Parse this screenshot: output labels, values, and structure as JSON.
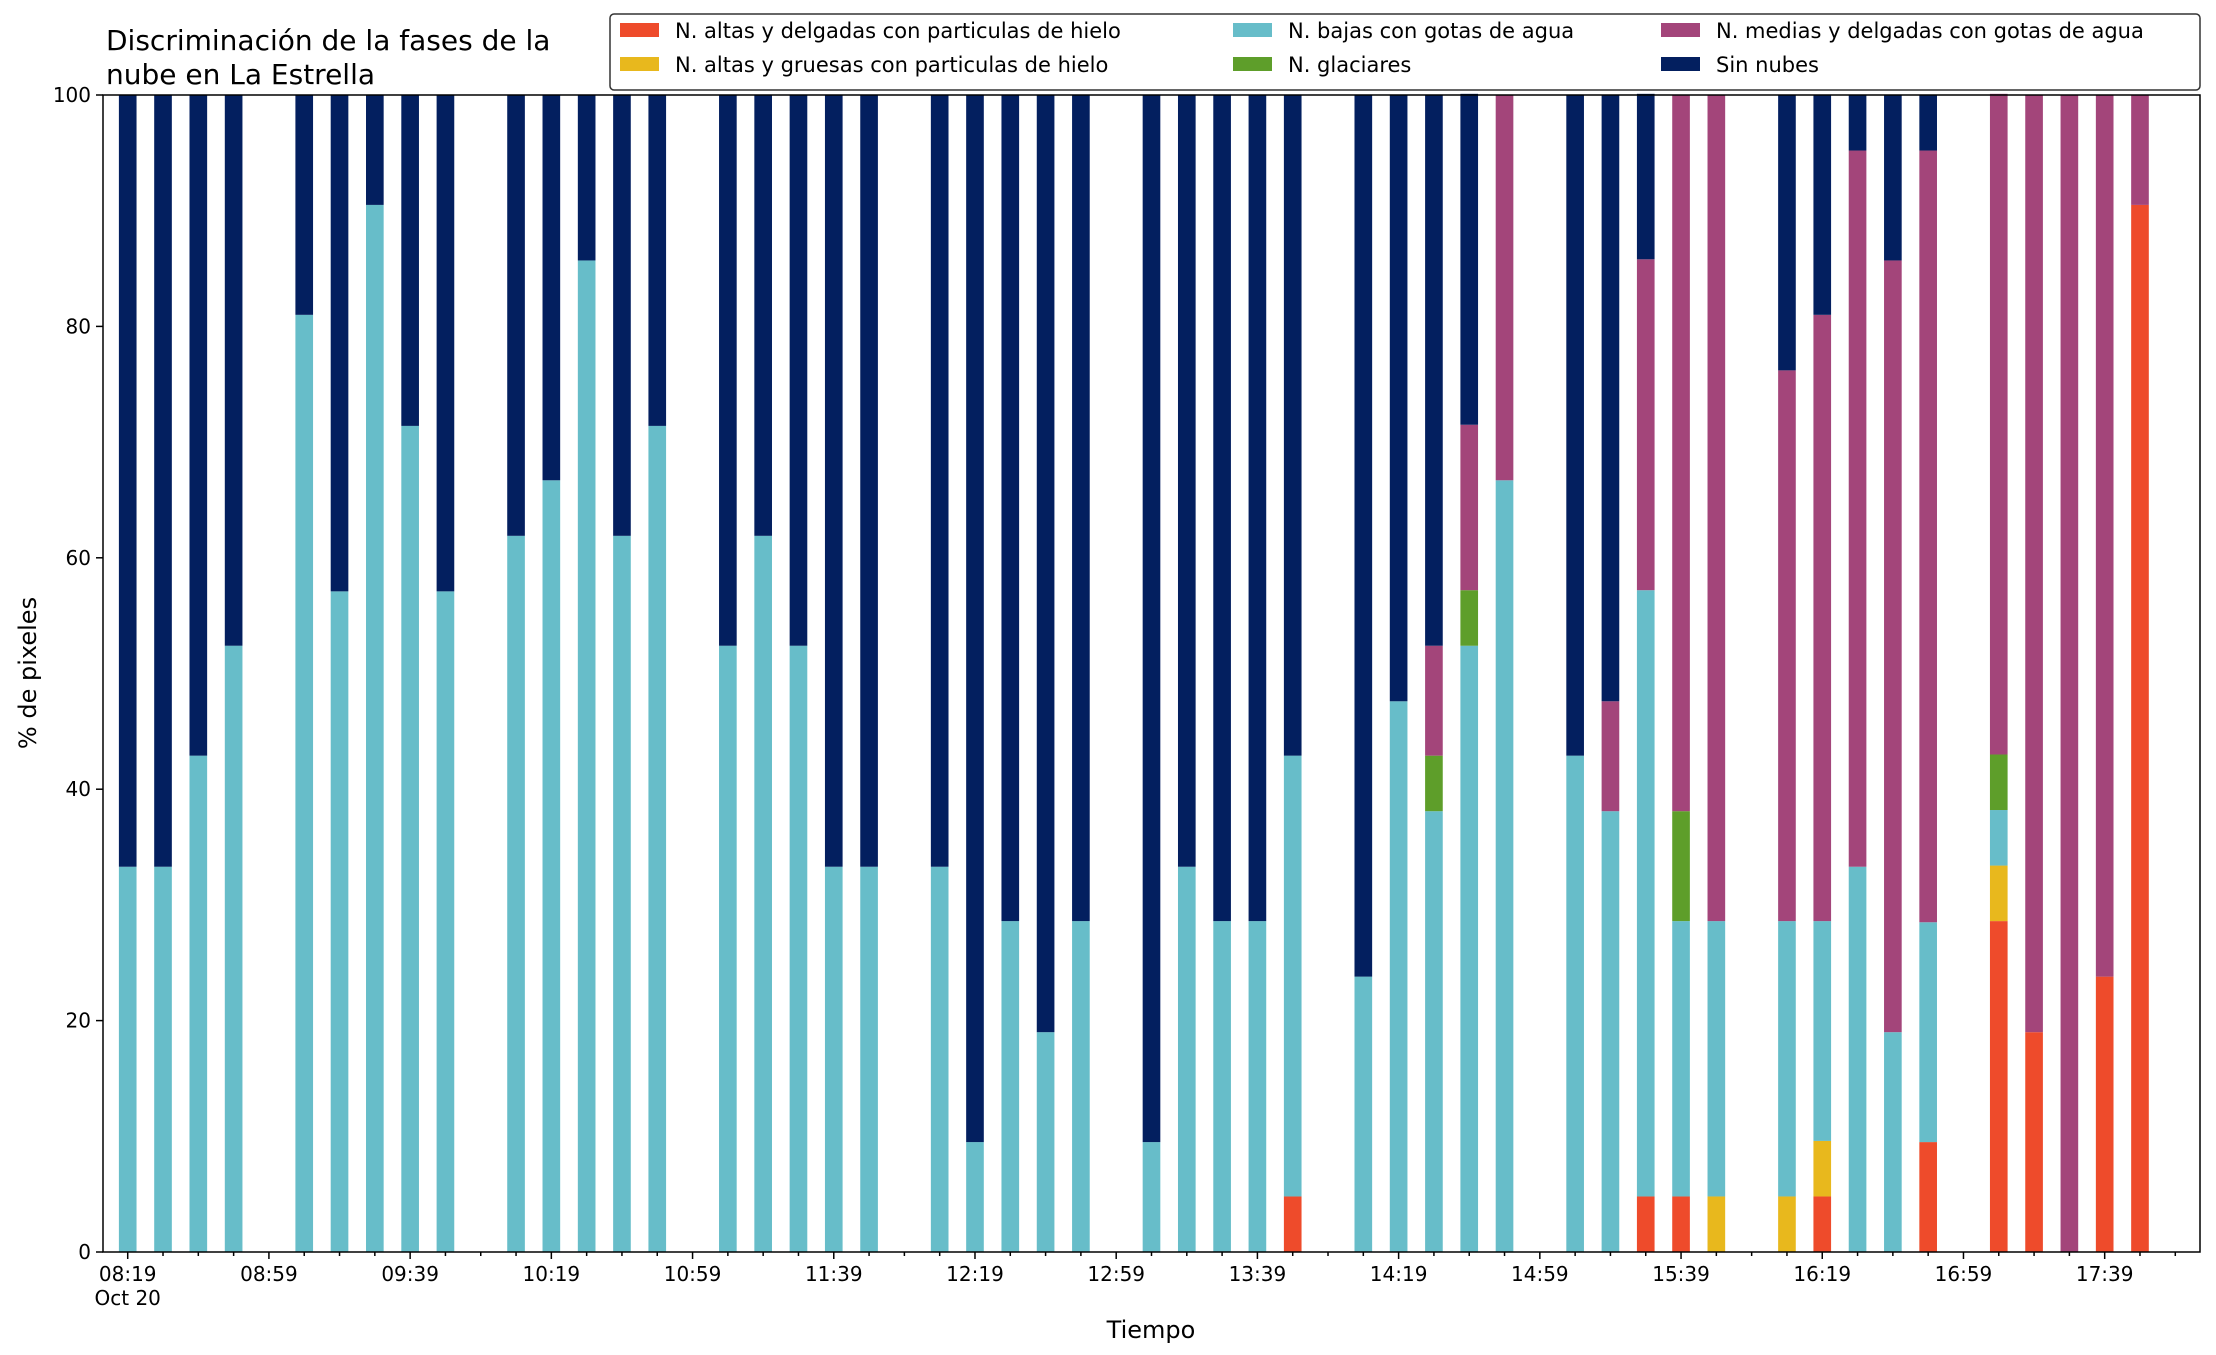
{
  "chart_data": {
    "type": "bar",
    "stacked": true,
    "title": [
      "Discriminación de la fases de la",
      "nube en La Estrella"
    ],
    "xlabel": "Tiempo",
    "ylabel": "% de pixeles",
    "ylim": [
      0,
      100
    ],
    "yticks": [
      0,
      20,
      40,
      60,
      80,
      100
    ],
    "xlim": [
      -0.7,
      58.7
    ],
    "xticks": [
      {
        "i": 0,
        "label": "08:19",
        "sub": "Oct 20"
      },
      {
        "i": 4,
        "label": "08:59"
      },
      {
        "i": 8,
        "label": "09:39"
      },
      {
        "i": 12,
        "label": "10:19"
      },
      {
        "i": 16,
        "label": "10:59"
      },
      {
        "i": 20,
        "label": "11:39"
      },
      {
        "i": 24,
        "label": "12:19"
      },
      {
        "i": 28,
        "label": "12:59"
      },
      {
        "i": 32,
        "label": "13:39"
      },
      {
        "i": 36,
        "label": "14:19"
      },
      {
        "i": 40,
        "label": "14:59"
      },
      {
        "i": 44,
        "label": "15:39"
      },
      {
        "i": 48,
        "label": "16:19"
      },
      {
        "i": 52,
        "label": "16:59"
      },
      {
        "i": 56,
        "label": "17:39"
      }
    ],
    "bar_width_fraction": 0.5,
    "grid": false,
    "legend_placement": "top",
    "series": [
      {
        "key": "altas_delgadas",
        "name": "N. altas y delgadas con particulas de hielo",
        "color": "#ee4b2b"
      },
      {
        "key": "altas_gruesas",
        "name": "N. altas y gruesas con particulas de hielo",
        "color": "#e8b81d"
      },
      {
        "key": "bajas",
        "name": "N. bajas con gotas de agua",
        "color": "#67bdc9"
      },
      {
        "key": "glaciares",
        "name": "N. glaciares",
        "color": "#5e9e2a"
      },
      {
        "key": "medias",
        "name": "N. medias y delgadas con gotas de agua",
        "color": "#a3457a"
      },
      {
        "key": "sin_nubes",
        "name": "Sin nubes",
        "color": "#031f5f"
      }
    ],
    "legend_order": [
      "altas_delgadas",
      "bajas",
      "medias",
      "altas_gruesas",
      "glaciares",
      "sin_nubes"
    ],
    "bars": [
      {
        "i": 0,
        "bajas": 33.3,
        "sin_nubes": 66.7
      },
      {
        "i": 1,
        "bajas": 33.3,
        "sin_nubes": 66.7
      },
      {
        "i": 2,
        "bajas": 42.9,
        "sin_nubes": 57.1
      },
      {
        "i": 3,
        "bajas": 52.4,
        "sin_nubes": 47.6
      },
      {
        "i": 5,
        "bajas": 81.0,
        "sin_nubes": 19.0
      },
      {
        "i": 6,
        "bajas": 57.1,
        "sin_nubes": 42.9
      },
      {
        "i": 7,
        "bajas": 90.5,
        "sin_nubes": 9.5
      },
      {
        "i": 8,
        "bajas": 71.4,
        "sin_nubes": 28.6
      },
      {
        "i": 9,
        "bajas": 57.1,
        "sin_nubes": 42.9
      },
      {
        "i": 11,
        "bajas": 61.9,
        "sin_nubes": 38.1
      },
      {
        "i": 12,
        "bajas": 66.7,
        "sin_nubes": 33.3
      },
      {
        "i": 13,
        "bajas": 85.7,
        "sin_nubes": 14.3
      },
      {
        "i": 14,
        "bajas": 61.9,
        "sin_nubes": 38.1
      },
      {
        "i": 15,
        "bajas": 71.4,
        "sin_nubes": 28.6
      },
      {
        "i": 17,
        "bajas": 52.4,
        "sin_nubes": 47.6
      },
      {
        "i": 18,
        "bajas": 61.9,
        "sin_nubes": 38.1
      },
      {
        "i": 19,
        "bajas": 52.4,
        "sin_nubes": 47.6
      },
      {
        "i": 20,
        "bajas": 33.3,
        "sin_nubes": 66.7
      },
      {
        "i": 21,
        "bajas": 33.3,
        "sin_nubes": 66.7
      },
      {
        "i": 23,
        "bajas": 33.3,
        "sin_nubes": 66.7
      },
      {
        "i": 24,
        "bajas": 9.5,
        "sin_nubes": 90.5
      },
      {
        "i": 25,
        "bajas": 28.6,
        "sin_nubes": 71.4
      },
      {
        "i": 26,
        "bajas": 19.0,
        "sin_nubes": 81.0
      },
      {
        "i": 27,
        "bajas": 28.6,
        "sin_nubes": 71.4
      },
      {
        "i": 29,
        "bajas": 9.5,
        "sin_nubes": 90.5
      },
      {
        "i": 30,
        "bajas": 33.3,
        "sin_nubes": 66.7
      },
      {
        "i": 31,
        "bajas": 28.6,
        "sin_nubes": 71.4
      },
      {
        "i": 32,
        "bajas": 28.6,
        "sin_nubes": 71.4
      },
      {
        "i": 33,
        "altas_delgadas": 4.8,
        "bajas": 38.1,
        "sin_nubes": 57.1
      },
      {
        "i": 35,
        "bajas": 23.8,
        "sin_nubes": 76.2
      },
      {
        "i": 36,
        "bajas": 47.6,
        "sin_nubes": 52.4
      },
      {
        "i": 37,
        "bajas": 38.1,
        "glaciares": 4.8,
        "medias": 9.5,
        "sin_nubes": 47.6
      },
      {
        "i": 38,
        "bajas": 52.4,
        "glaciares": 4.8,
        "medias": 14.3,
        "sin_nubes": 28.6
      },
      {
        "i": 39,
        "bajas": 66.7,
        "medias": 33.3
      },
      {
        "i": 41,
        "bajas": 42.9,
        "sin_nubes": 57.1
      },
      {
        "i": 42,
        "bajas": 38.1,
        "medias": 9.5,
        "sin_nubes": 52.4
      },
      {
        "i": 43,
        "altas_delgadas": 4.8,
        "bajas": 52.4,
        "medias": 28.6,
        "sin_nubes": 14.3
      },
      {
        "i": 44,
        "altas_delgadas": 4.8,
        "bajas": 23.8,
        "glaciares": 9.5,
        "medias": 61.9
      },
      {
        "i": 45,
        "altas_gruesas": 4.8,
        "bajas": 23.8,
        "medias": 71.4
      },
      {
        "i": 47,
        "altas_gruesas": 4.8,
        "bajas": 23.8,
        "medias": 47.6,
        "sin_nubes": 23.8
      },
      {
        "i": 48,
        "altas_delgadas": 4.8,
        "altas_gruesas": 4.8,
        "bajas": 19.0,
        "medias": 52.4,
        "sin_nubes": 19.0
      },
      {
        "i": 49,
        "bajas": 33.3,
        "medias": 61.9,
        "sin_nubes": 4.8
      },
      {
        "i": 50,
        "bajas": 19.0,
        "medias": 66.7,
        "sin_nubes": 14.3
      },
      {
        "i": 51,
        "altas_delgadas": 9.5,
        "bajas": 19.0,
        "medias": 66.7,
        "sin_nubes": 4.8
      },
      {
        "i": 53,
        "altas_delgadas": 28.6,
        "altas_gruesas": 4.8,
        "bajas": 4.8,
        "glaciares": 4.8,
        "medias": 57.1
      },
      {
        "i": 54,
        "altas_delgadas": 19.0,
        "medias": 81.0
      },
      {
        "i": 55,
        "medias": 100.0
      },
      {
        "i": 56,
        "altas_delgadas": 23.8,
        "medias": 76.2
      },
      {
        "i": 57,
        "altas_delgadas": 90.5,
        "medias": 9.5
      }
    ]
  }
}
